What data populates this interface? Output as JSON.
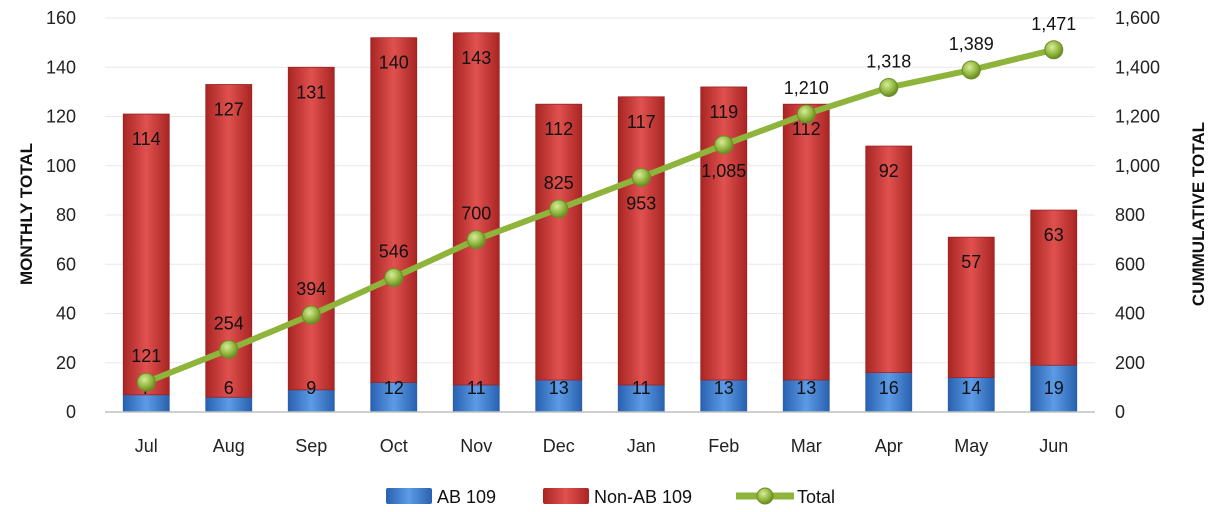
{
  "chart_data": {
    "type": "bar",
    "stacked": true,
    "categories": [
      "Jul",
      "Aug",
      "Sep",
      "Oct",
      "Nov",
      "Dec",
      "Jan",
      "Feb",
      "Mar",
      "Apr",
      "May",
      "Jun"
    ],
    "series": [
      {
        "name": "AB 109",
        "type": "bar",
        "axis": "left",
        "color": "#3e7fd1",
        "values": [
          7,
          6,
          9,
          12,
          11,
          13,
          11,
          13,
          13,
          16,
          14,
          19
        ]
      },
      {
        "name": "Non-AB 109",
        "type": "bar",
        "axis": "left",
        "color": "#cc3b3a",
        "values": [
          114,
          127,
          131,
          140,
          143,
          112,
          117,
          119,
          112,
          92,
          57,
          63
        ]
      },
      {
        "name": "Total",
        "type": "line",
        "axis": "right",
        "color": "#8fb43c",
        "values": [
          121,
          254,
          394,
          546,
          700,
          825,
          953,
          1085,
          1210,
          1318,
          1389,
          1471
        ]
      }
    ],
    "bar_value_labels": {
      "ab": [
        "7",
        "6",
        "9",
        "12",
        "11",
        "13",
        "11",
        "13",
        "13",
        "16",
        "14",
        "19"
      ],
      "non_ab": [
        "114",
        "127",
        "131",
        "140",
        "143",
        "112",
        "117",
        "119",
        "112",
        "92",
        "57",
        "63"
      ]
    },
    "line_value_labels": [
      "121",
      "254",
      "394",
      "546",
      "700",
      "825",
      "953",
      "1,085",
      "1,210",
      "1,318",
      "1,389",
      "1,471"
    ],
    "y_left": {
      "label": "MONTHLY TOTAL",
      "range": [
        0,
        160
      ],
      "ticks": [
        0,
        20,
        40,
        60,
        80,
        100,
        120,
        140,
        160
      ],
      "tick_labels": [
        "0",
        "20",
        "40",
        "60",
        "80",
        "100",
        "120",
        "140",
        "160"
      ]
    },
    "y_right": {
      "label": "CUMMULATIVE TOTAL",
      "range": [
        0,
        1600
      ],
      "ticks": [
        0,
        200,
        400,
        600,
        800,
        1000,
        1200,
        1400,
        1600
      ],
      "tick_labels": [
        "0",
        "200",
        "400",
        "600",
        "800",
        "1,000",
        "1,200",
        "1,400",
        "1,600"
      ]
    },
    "grid": true,
    "legend": {
      "position": "bottom",
      "items": [
        "AB 109",
        "Non-AB 109",
        "Total"
      ]
    }
  }
}
